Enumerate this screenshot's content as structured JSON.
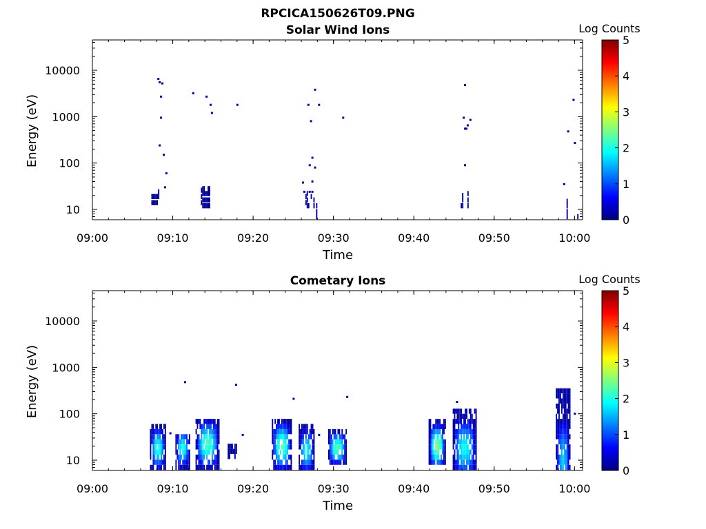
{
  "figure": {
    "title": "RPCICA150626T09.PNG"
  },
  "colors": {
    "colormap": [
      "#00007f",
      "#0000ff",
      "#007fff",
      "#00ffff",
      "#7fff7f",
      "#ffff00",
      "#ff7f00",
      "#ff0000",
      "#7f0000"
    ],
    "axis": "#000000",
    "background": "#ffffff"
  },
  "chart_data": [
    {
      "type": "heatmap",
      "title": "Solar Wind Ions",
      "xlabel": "Time",
      "ylabel": "Energy (eV)",
      "x_scale": "time",
      "y_scale": "log",
      "xlim": [
        "09:00",
        "10:01"
      ],
      "ylim": [
        6,
        45000
      ],
      "xticks": [
        "09:00",
        "09:10",
        "09:20",
        "09:30",
        "09:40",
        "09:50",
        "10:00"
      ],
      "yticks": [
        "10",
        "100",
        "1000",
        "10000"
      ],
      "colorbar": {
        "label": "Log Counts",
        "range": [
          0,
          5
        ],
        "ticks": [
          "0",
          "1",
          "2",
          "3",
          "4",
          "5"
        ]
      },
      "cells_columns": [
        "time",
        "energy_eV",
        "log_counts"
      ],
      "cells": [
        [
          "09:07:20",
          14,
          0.1
        ],
        [
          "09:07:20",
          19,
          0.1
        ],
        [
          "09:07:30",
          14,
          0.1
        ],
        [
          "09:07:30",
          19,
          0.1
        ],
        [
          "09:07:40",
          14,
          0.1
        ],
        [
          "09:07:40",
          19,
          0.1
        ],
        [
          "09:07:50",
          14,
          0.1
        ],
        [
          "09:07:50",
          19,
          0.1
        ],
        [
          "09:08:00",
          14,
          0.1
        ],
        [
          "09:08:00",
          19,
          0.1
        ],
        [
          "09:08:10",
          19,
          0.1
        ],
        [
          "09:08:10",
          24,
          0.2
        ],
        [
          "09:08:10",
          6500,
          0.3
        ],
        [
          "09:08:20",
          5500,
          0.3
        ],
        [
          "09:08:20",
          240,
          0.3
        ],
        [
          "09:08:30",
          2700,
          0.3
        ],
        [
          "09:08:30",
          950,
          0.3
        ],
        [
          "09:08:40",
          5200,
          0.3
        ],
        [
          "09:08:50",
          150,
          0.3
        ],
        [
          "09:09:00",
          30,
          0.3
        ],
        [
          "09:09:10",
          60,
          0.3
        ],
        [
          "09:12:30",
          3200,
          0.3
        ],
        [
          "09:13:30",
          14,
          0.1
        ],
        [
          "09:13:30",
          19,
          0.1
        ],
        [
          "09:13:30",
          26,
          0.1
        ],
        [
          "09:13:40",
          12,
          0.1
        ],
        [
          "09:13:40",
          16,
          0.1
        ],
        [
          "09:13:40",
          22,
          0.1
        ],
        [
          "09:13:40",
          28,
          0.1
        ],
        [
          "09:13:50",
          12,
          0.1
        ],
        [
          "09:13:50",
          16,
          0.1
        ],
        [
          "09:13:50",
          22,
          0.1
        ],
        [
          "09:13:50",
          28,
          0.1
        ],
        [
          "09:14:00",
          12,
          0.1
        ],
        [
          "09:14:00",
          16,
          0.1
        ],
        [
          "09:14:00",
          22,
          0.1
        ],
        [
          "09:14:10",
          12,
          0.1
        ],
        [
          "09:14:10",
          16,
          0.1
        ],
        [
          "09:14:10",
          22,
          0.1
        ],
        [
          "09:14:10",
          2700,
          0.3
        ],
        [
          "09:14:20",
          12,
          0.1
        ],
        [
          "09:14:20",
          16,
          0.1
        ],
        [
          "09:14:20",
          22,
          0.1
        ],
        [
          "09:14:20",
          28,
          0.1
        ],
        [
          "09:14:30",
          12,
          0.1
        ],
        [
          "09:14:30",
          16,
          0.1
        ],
        [
          "09:14:30",
          22,
          0.1
        ],
        [
          "09:14:30",
          28,
          0.1
        ],
        [
          "09:14:40",
          1800,
          0.3
        ],
        [
          "09:14:50",
          1200,
          0.3
        ],
        [
          "09:18:00",
          1800,
          0.3
        ],
        [
          "09:26:10",
          38,
          0.3
        ],
        [
          "09:26:20",
          24,
          0.3
        ],
        [
          "09:26:30",
          14,
          0.2
        ],
        [
          "09:26:30",
          19,
          0.2
        ],
        [
          "09:26:40",
          12,
          0.2
        ],
        [
          "09:26:40",
          16,
          0.2
        ],
        [
          "09:26:40",
          22,
          0.2
        ],
        [
          "09:26:50",
          12,
          0.2
        ],
        [
          "09:26:50",
          1800,
          0.3
        ],
        [
          "09:27:00",
          24,
          0.3
        ],
        [
          "09:27:00",
          90,
          0.3
        ],
        [
          "09:27:10",
          800,
          0.3
        ],
        [
          "09:27:10",
          19,
          0.2
        ],
        [
          "09:27:20",
          24,
          0.3
        ],
        [
          "09:27:20",
          40,
          0.3
        ],
        [
          "09:27:20",
          130,
          0.3
        ],
        [
          "09:27:30",
          12,
          0.2
        ],
        [
          "09:27:30",
          16,
          0.2
        ],
        [
          "09:27:40",
          3800,
          0.3
        ],
        [
          "09:27:40",
          80,
          0.3
        ],
        [
          "09:27:50",
          7,
          0.2
        ],
        [
          "09:27:50",
          9,
          0.2
        ],
        [
          "09:27:50",
          12,
          0.2
        ],
        [
          "09:28:10",
          1800,
          0.3
        ],
        [
          "09:31:10",
          950,
          0.3
        ],
        [
          "09:45:50",
          12,
          0.1
        ],
        [
          "09:46:00",
          12,
          0.1
        ],
        [
          "09:46:00",
          16,
          0.1
        ],
        [
          "09:46:00",
          20,
          0.1
        ],
        [
          "09:46:10",
          950,
          0.3
        ],
        [
          "09:46:20",
          4800,
          0.3
        ],
        [
          "09:46:20",
          550,
          0.3
        ],
        [
          "09:46:20",
          90,
          0.3
        ],
        [
          "09:46:30",
          550,
          0.3
        ],
        [
          "09:46:40",
          650,
          0.3
        ],
        [
          "09:46:40",
          12,
          0.1
        ],
        [
          "09:46:40",
          16,
          0.1
        ],
        [
          "09:46:40",
          22,
          0.1
        ],
        [
          "09:47:00",
          850,
          0.3
        ],
        [
          "09:58:40",
          35,
          0.3
        ],
        [
          "09:59:00",
          7,
          0.2
        ],
        [
          "09:59:00",
          9,
          0.2
        ],
        [
          "09:59:00",
          12,
          0.2
        ],
        [
          "09:59:00",
          15,
          0.2
        ],
        [
          "09:59:10",
          480,
          0.3
        ],
        [
          "09:59:50",
          2300,
          0.3
        ],
        [
          "10:00:00",
          270,
          0.3
        ],
        [
          "10:00:20",
          7,
          0.2
        ]
      ]
    },
    {
      "type": "heatmap",
      "title": "Cometary Ions",
      "xlabel": "Time",
      "ylabel": "Energy (eV)",
      "x_scale": "time",
      "y_scale": "log",
      "xlim": [
        "09:00",
        "10:01"
      ],
      "ylim": [
        6,
        45000
      ],
      "xticks": [
        "09:00",
        "09:10",
        "09:20",
        "09:30",
        "09:40",
        "09:50",
        "10:00"
      ],
      "yticks": [
        "10",
        "100",
        "1000",
        "10000"
      ],
      "colorbar": {
        "label": "Log Counts",
        "range": [
          0,
          5
        ],
        "ticks": [
          "0",
          "1",
          "2",
          "3",
          "4",
          "5"
        ]
      },
      "bursts_columns": [
        "start",
        "end",
        "emin_eV",
        "emax_eV",
        "peak_energy_eV",
        "peak_log_counts"
      ],
      "bursts": [
        [
          "09:07:10",
          "09:09:00",
          7,
          55,
          18,
          2.0
        ],
        [
          "09:10:20",
          "09:12:00",
          7,
          40,
          18,
          2.0
        ],
        [
          "09:12:50",
          "09:15:40",
          7,
          75,
          22,
          2.2
        ],
        [
          "09:16:50",
          "09:17:50",
          12,
          25,
          18,
          0.2
        ],
        [
          "09:22:20",
          "09:24:40",
          7,
          75,
          20,
          2.3
        ],
        [
          "09:25:40",
          "09:27:30",
          7,
          55,
          16,
          1.9
        ],
        [
          "09:29:20",
          "09:31:30",
          9,
          45,
          18,
          2.3
        ],
        [
          "09:41:50",
          "09:43:50",
          9,
          80,
          20,
          2.5
        ],
        [
          "09:44:50",
          "09:47:40",
          7,
          120,
          18,
          1.9
        ],
        [
          "09:57:40",
          "09:59:20",
          7,
          380,
          10,
          1.6
        ]
      ],
      "points_columns": [
        "time",
        "energy_eV",
        "log_counts"
      ],
      "points": [
        [
          "09:09:40",
          38,
          0.3
        ],
        [
          "09:11:30",
          480,
          0.3
        ],
        [
          "09:17:50",
          420,
          0.3
        ],
        [
          "09:18:40",
          35,
          0.3
        ],
        [
          "09:25:00",
          210,
          0.3
        ],
        [
          "09:28:10",
          35,
          0.3
        ],
        [
          "09:31:40",
          230,
          0.3
        ],
        [
          "09:45:00",
          120,
          0.3
        ],
        [
          "09:45:20",
          180,
          0.3
        ],
        [
          "10:00:00",
          100,
          0.3
        ]
      ]
    }
  ]
}
